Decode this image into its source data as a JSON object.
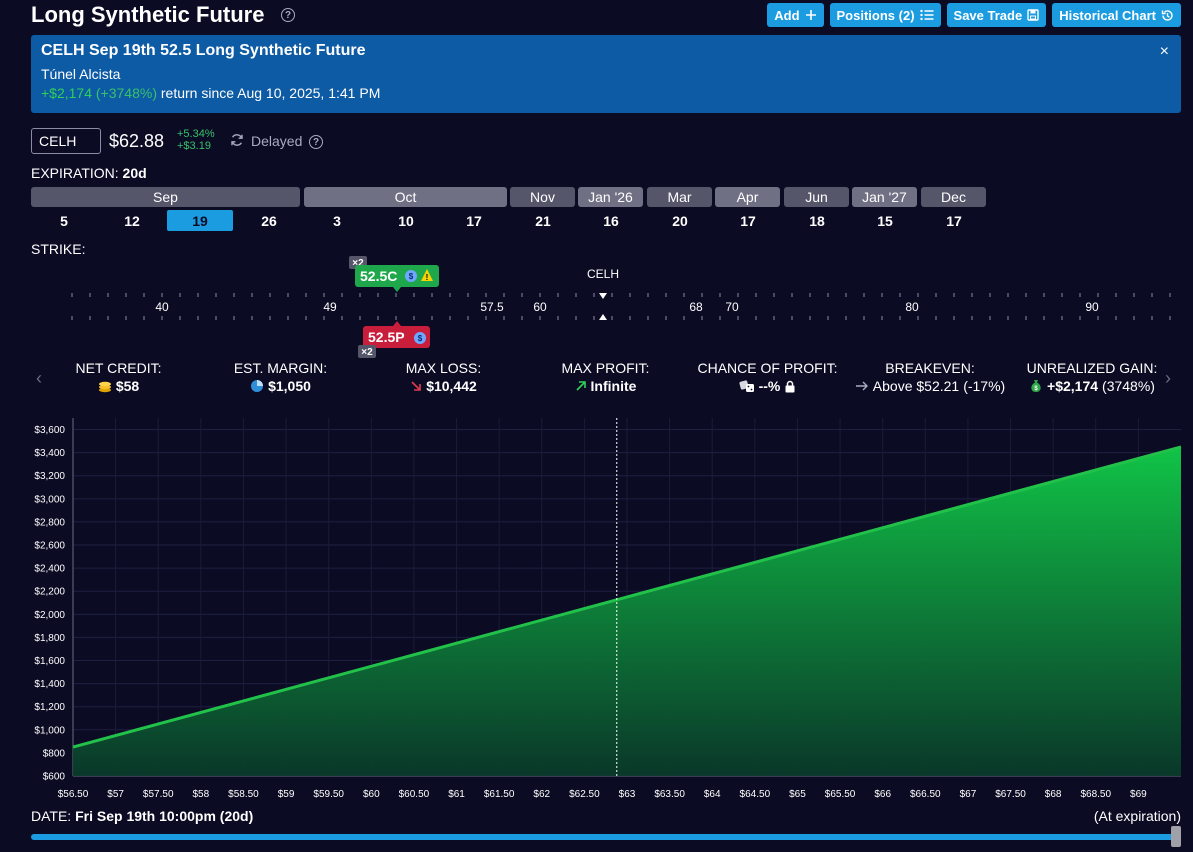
{
  "header": {
    "title": "Long Synthetic Future",
    "buttons": {
      "add": "Add",
      "positions": "Positions (2)",
      "save": "Save Trade",
      "historical": "Historical Chart"
    }
  },
  "banner": {
    "title": "CELH Sep 19th 52.5 Long Synthetic Future",
    "subtitle": "Túnel Alcista",
    "return_amount": "+$2,174",
    "return_pct": "(+3748%)",
    "return_text": "return since Aug 10, 2025, 1:41 PM",
    "close": "×"
  },
  "ticker": {
    "symbol": "CELH",
    "price": "$62.88",
    "change_pct": "+5.34%",
    "change_abs": "+$3.19",
    "delayed": "Delayed"
  },
  "expiration": {
    "label": "EXPIRATION:",
    "days": "20d",
    "months": [
      "Sep",
      "Oct",
      "Nov",
      "Jan '26",
      "Mar",
      "Apr",
      "Jun",
      "Jan '27",
      "Dec"
    ],
    "dates": [
      "5",
      "12",
      "19",
      "26",
      "3",
      "10",
      "17",
      "21",
      "16",
      "20",
      "17",
      "18",
      "15",
      "17"
    ],
    "selected_index": 2
  },
  "strike": {
    "label": "STRIKE:",
    "ticks": [
      "40",
      "49",
      "57.5",
      "60",
      "68",
      "70",
      "80",
      "90"
    ],
    "underlying_label": "CELH",
    "call_leg": "52.5C",
    "put_leg": "52.5P",
    "quantity": "×2"
  },
  "stats": {
    "net_credit": {
      "label": "NET CREDIT:",
      "value": "$58"
    },
    "est_margin": {
      "label": "EST. MARGIN:",
      "value": "$1,050"
    },
    "max_loss": {
      "label": "MAX LOSS:",
      "value": "$10,442"
    },
    "max_profit": {
      "label": "MAX PROFIT:",
      "value": "Infinite"
    },
    "chance_profit": {
      "label": "CHANCE OF PROFIT:",
      "value": "--%"
    },
    "breakeven": {
      "label": "BREAKEVEN:",
      "value": "Above $52.21",
      "detail": "(-17%)"
    },
    "unrealized": {
      "label": "UNREALIZED GAIN:",
      "value": "+$2,174",
      "detail": "(3748%)"
    }
  },
  "chart_data": {
    "type": "area",
    "x": [
      56.5,
      69.5
    ],
    "y": [
      850,
      3450
    ],
    "xlim": [
      56.5,
      69.5
    ],
    "ylim": [
      600,
      3700
    ],
    "current_price": 62.88,
    "y_ticks": [
      "$600",
      "$800",
      "$1,000",
      "$1,200",
      "$1,400",
      "$1,600",
      "$1,800",
      "$2,000",
      "$2,200",
      "$2,400",
      "$2,600",
      "$2,800",
      "$3,000",
      "$3,200",
      "$3,400",
      "$3,600"
    ],
    "x_ticks": [
      "$56.50",
      "$57",
      "$57.50",
      "$58",
      "$58.50",
      "$59",
      "$59.50",
      "$60",
      "$60.50",
      "$61",
      "$61.50",
      "$62",
      "$62.50",
      "$63",
      "$63.50",
      "$64",
      "$64.50",
      "$65",
      "$65.50",
      "$66",
      "$66.50",
      "$67",
      "$67.50",
      "$68",
      "$68.50",
      "$69"
    ],
    "line_color": "#22c24a",
    "grid": true
  },
  "date": {
    "label": "DATE:",
    "value": "Fri Sep 19th 10:00pm (20d)",
    "note": "(At expiration)"
  }
}
